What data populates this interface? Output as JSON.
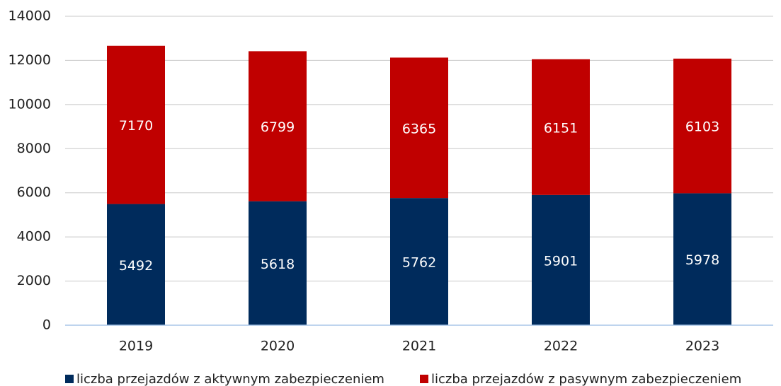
{
  "chart_data": {
    "type": "stacked_bar",
    "categories": [
      "2019",
      "2020",
      "2021",
      "2022",
      "2023"
    ],
    "series": [
      {
        "name": "liczba przejazdów z aktywnym zabezpieczeniem",
        "color": "#002b5c",
        "values": [
          5492,
          5618,
          5762,
          5901,
          5978
        ]
      },
      {
        "name": "liczba przejazdów z pasywnym zabezpieczeniem",
        "color": "#c00000",
        "values": [
          7170,
          6799,
          6365,
          6151,
          6103
        ]
      }
    ],
    "ylim": [
      0,
      14000
    ],
    "yticks": [
      0,
      2000,
      4000,
      6000,
      8000,
      10000,
      12000,
      14000
    ],
    "grid": true,
    "legend": "bottom"
  }
}
